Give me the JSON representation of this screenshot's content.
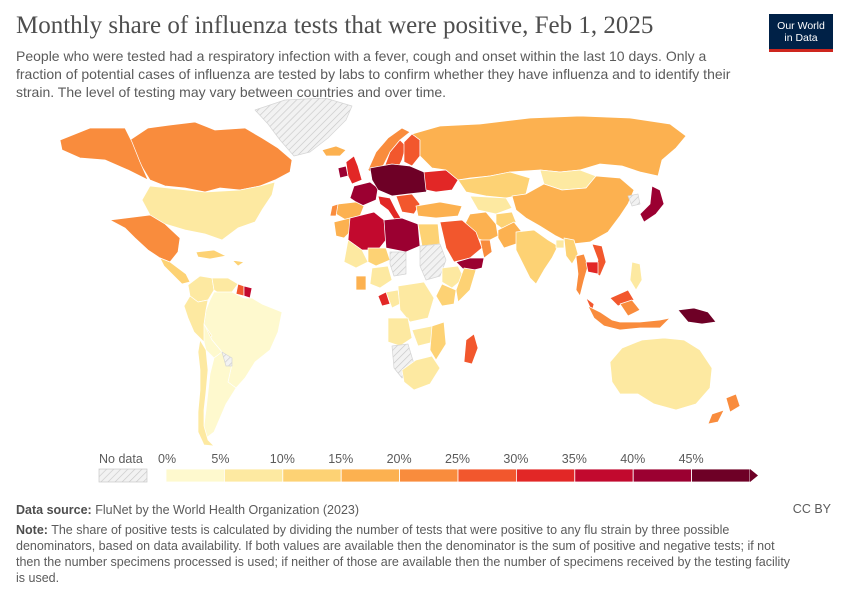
{
  "header": {
    "title": "Monthly share of influenza tests that were positive, Feb 1, 2025",
    "subtitle": "People who were tested had a respiratory infection with a fever, cough and onset within the last 10 days. Only a fraction of potential cases of influenza are tested by labs to confirm whether they have influenza and to identify their strain. The level of testing may vary between countries and over time."
  },
  "logo": {
    "line1": "Our World",
    "line2": "in Data",
    "bg_color": "#002147",
    "accent_color": "#ce261e"
  },
  "legend": {
    "no_data_label": "No data",
    "ticks": [
      "0%",
      "5%",
      "10%",
      "15%",
      "20%",
      "25%",
      "30%",
      "35%",
      "40%",
      "45%"
    ],
    "colors": [
      "#fef9ce",
      "#fde9a1",
      "#fdd274",
      "#fcb150",
      "#f98c3d",
      "#f2572d",
      "#e22726",
      "#c2092e",
      "#9b0031",
      "#6e0026"
    ],
    "no_data_color": "#e8e8e8"
  },
  "footer": {
    "source_label": "Data source:",
    "source_text": "FluNet by the World Health Organization (2023)",
    "license": "CC BY",
    "note_label": "Note:",
    "note_text": "The share of positive tests is calculated by dividing the number of tests that were positive to any flu strain by three possible denominators, based on data availability. If both values are available then the denominator is the sum of positive and negative tests; if not then the number specimens processed is used; if neither of those are available then the number of specimens received by the testing facility is used."
  },
  "map_regions": [
    {
      "name": "Canada",
      "bin": 4
    },
    {
      "name": "Alaska",
      "bin": 4
    },
    {
      "name": "United States",
      "bin": 1
    },
    {
      "name": "Greenland",
      "bin": -1
    },
    {
      "name": "Mexico",
      "bin": 4
    },
    {
      "name": "Central America",
      "bin": 2
    },
    {
      "name": "Caribbean",
      "bin": 2
    },
    {
      "name": "Colombia",
      "bin": 1
    },
    {
      "name": "Venezuela",
      "bin": 1
    },
    {
      "name": "Guyana",
      "bin": 5
    },
    {
      "name": "Suriname",
      "bin": 7
    },
    {
      "name": "Brazil",
      "bin": 0
    },
    {
      "name": "Peru",
      "bin": 1
    },
    {
      "name": "Bolivia",
      "bin": 0
    },
    {
      "name": "Argentina",
      "bin": 0
    },
    {
      "name": "Chile",
      "bin": 1
    },
    {
      "name": "Paraguay",
      "bin": -1
    },
    {
      "name": "Iceland",
      "bin": 3
    },
    {
      "name": "Norway",
      "bin": 4
    },
    {
      "name": "Sweden",
      "bin": 5
    },
    {
      "name": "Finland",
      "bin": 5
    },
    {
      "name": "United Kingdom",
      "bin": 6
    },
    {
      "name": "Ireland",
      "bin": 8
    },
    {
      "name": "France",
      "bin": 8
    },
    {
      "name": "Spain",
      "bin": 3
    },
    {
      "name": "Portugal",
      "bin": 4
    },
    {
      "name": "Central Europe",
      "bin": 9
    },
    {
      "name": "Italy",
      "bin": 6
    },
    {
      "name": "Balkans",
      "bin": 5
    },
    {
      "name": "Ukraine",
      "bin": 6
    },
    {
      "name": "Turkey",
      "bin": 3
    },
    {
      "name": "Russia",
      "bin": 3
    },
    {
      "name": "Kazakhstan",
      "bin": 2
    },
    {
      "name": "Central Asia",
      "bin": 1
    },
    {
      "name": "Mongolia",
      "bin": 1
    },
    {
      "name": "China",
      "bin": 3
    },
    {
      "name": "North Korea",
      "bin": -1
    },
    {
      "name": "Japan",
      "bin": 8
    },
    {
      "name": "Iran",
      "bin": 3
    },
    {
      "name": "Afghanistan",
      "bin": 2
    },
    {
      "name": "Pakistan",
      "bin": 3
    },
    {
      "name": "India",
      "bin": 2
    },
    {
      "name": "Bangladesh",
      "bin": 1
    },
    {
      "name": "Myanmar",
      "bin": 2
    },
    {
      "name": "Thailand",
      "bin": 4
    },
    {
      "name": "Vietnam",
      "bin": 5
    },
    {
      "name": "Cambodia",
      "bin": 6
    },
    {
      "name": "Malaysia",
      "bin": 5
    },
    {
      "name": "Indonesia",
      "bin": 4
    },
    {
      "name": "Philippines",
      "bin": 1
    },
    {
      "name": "Papua New Guinea",
      "bin": 9
    },
    {
      "name": "Saudi Arabia",
      "bin": 5
    },
    {
      "name": "Yemen",
      "bin": 8
    },
    {
      "name": "Oman",
      "bin": 4
    },
    {
      "name": "Morocco",
      "bin": 3
    },
    {
      "name": "Algeria",
      "bin": 7
    },
    {
      "name": "Libya",
      "bin": 8
    },
    {
      "name": "Egypt",
      "bin": 2
    },
    {
      "name": "Sudan",
      "bin": -1
    },
    {
      "name": "Mali",
      "bin": 1
    },
    {
      "name": "Niger",
      "bin": 2
    },
    {
      "name": "Chad",
      "bin": -1
    },
    {
      "name": "Ethiopia",
      "bin": 1
    },
    {
      "name": "Somalia",
      "bin": 2
    },
    {
      "name": "Kenya",
      "bin": 2
    },
    {
      "name": "Nigeria",
      "bin": 1
    },
    {
      "name": "Ghana",
      "bin": 3
    },
    {
      "name": "Congo",
      "bin": 1
    },
    {
      "name": "DR Congo",
      "bin": 1
    },
    {
      "name": "Gabon",
      "bin": 6
    },
    {
      "name": "Angola",
      "bin": 1
    },
    {
      "name": "Zambia",
      "bin": 1
    },
    {
      "name": "Mozambique",
      "bin": 2
    },
    {
      "name": "Namibia",
      "bin": -1
    },
    {
      "name": "South Africa",
      "bin": 1
    },
    {
      "name": "Madagascar",
      "bin": 5
    },
    {
      "name": "Australia",
      "bin": 1
    },
    {
      "name": "New Zealand",
      "bin": 4
    }
  ]
}
